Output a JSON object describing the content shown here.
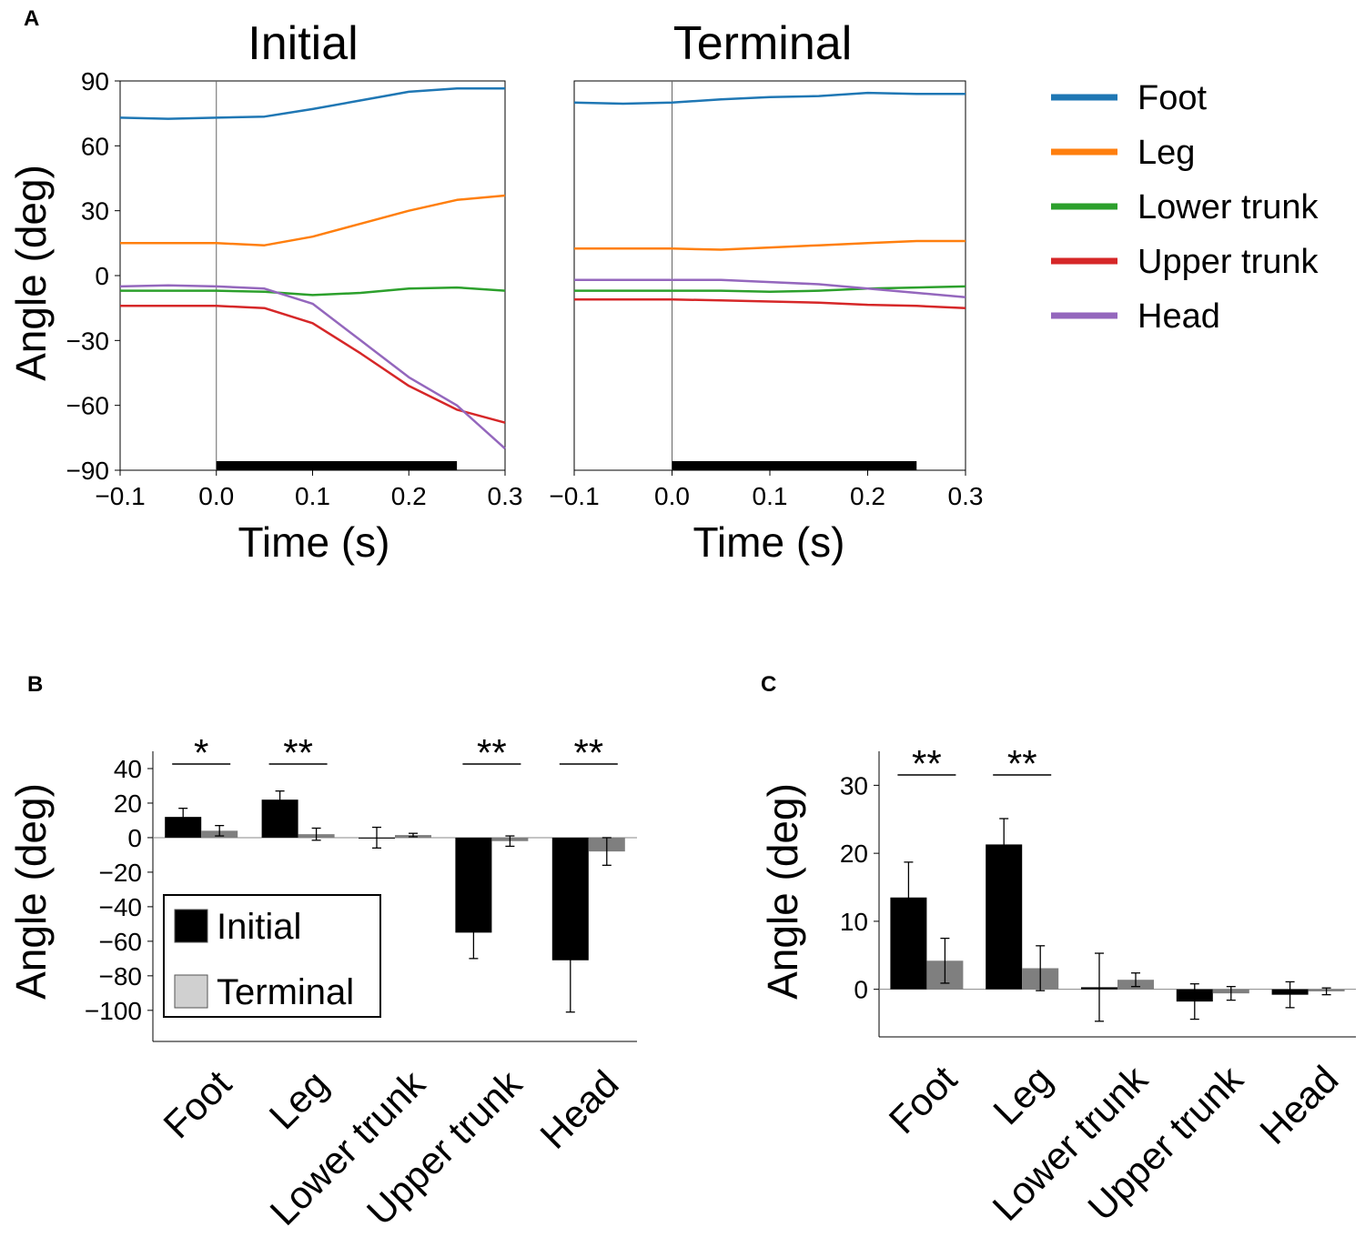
{
  "figure": {
    "panel_labels": [
      "A",
      "B",
      "C"
    ]
  },
  "chart_data": [
    {
      "panel": "A",
      "type": "line",
      "title": "Initial",
      "xlabel": "Time (s)",
      "ylabel": "Angle (deg)",
      "xlim": [
        -0.1,
        0.3
      ],
      "ylim": [
        -90,
        90
      ],
      "xticks": [
        -0.1,
        0.0,
        0.1,
        0.2,
        0.3
      ],
      "xtick_labels": [
        "−0.1",
        "0.0",
        "0.1",
        "0.2",
        "0.3"
      ],
      "yticks": [
        90,
        60,
        30,
        0,
        -30,
        -60,
        -90
      ],
      "ytick_labels": [
        "90",
        "60",
        "30",
        "0",
        "−30",
        "−60",
        "−90"
      ],
      "vline_x": 0.0,
      "bar_interval": [
        0.0,
        0.25
      ],
      "series": [
        {
          "name": "Foot",
          "color": "#1f77b4",
          "x": [
            -0.1,
            -0.05,
            0.0,
            0.05,
            0.1,
            0.15,
            0.2,
            0.25,
            0.3
          ],
          "y": [
            73,
            72.5,
            73,
            73.5,
            77,
            81,
            85,
            86.5,
            86.5
          ]
        },
        {
          "name": "Leg",
          "color": "#ff7f0e",
          "x": [
            -0.1,
            -0.05,
            0.0,
            0.05,
            0.1,
            0.15,
            0.2,
            0.25,
            0.3
          ],
          "y": [
            15,
            15,
            15,
            14,
            18,
            24,
            30,
            35,
            37
          ]
        },
        {
          "name": "Lower trunk",
          "color": "#2ca02c",
          "x": [
            -0.1,
            -0.05,
            0.0,
            0.05,
            0.1,
            0.15,
            0.2,
            0.25,
            0.3
          ],
          "y": [
            -7,
            -7,
            -7,
            -7.5,
            -9,
            -8,
            -6,
            -5.5,
            -7
          ]
        },
        {
          "name": "Upper trunk",
          "color": "#d62728",
          "x": [
            -0.1,
            -0.05,
            0.0,
            0.05,
            0.1,
            0.15,
            0.2,
            0.25,
            0.3
          ],
          "y": [
            -14,
            -14,
            -14,
            -15,
            -22,
            -36,
            -51,
            -62,
            -68
          ]
        },
        {
          "name": "Head",
          "color": "#9467bd",
          "x": [
            -0.1,
            -0.05,
            0.0,
            0.05,
            0.1,
            0.15,
            0.2,
            0.25,
            0.3
          ],
          "y": [
            -5,
            -4.5,
            -5,
            -6,
            -13,
            -30,
            -47,
            -60,
            -80
          ]
        }
      ]
    },
    {
      "panel": "A",
      "type": "line",
      "title": "Terminal",
      "xlabel": "Time (s)",
      "ylabel": "",
      "xlim": [
        -0.1,
        0.3
      ],
      "ylim": [
        -90,
        90
      ],
      "xticks": [
        -0.1,
        0.0,
        0.1,
        0.2,
        0.3
      ],
      "xtick_labels": [
        "−0.1",
        "0.0",
        "0.1",
        "0.2",
        "0.3"
      ],
      "yticks": [],
      "ytick_labels": [],
      "vline_x": 0.0,
      "bar_interval": [
        0.0,
        0.25
      ],
      "series": [
        {
          "name": "Foot",
          "color": "#1f77b4",
          "x": [
            -0.1,
            -0.05,
            0.0,
            0.05,
            0.1,
            0.15,
            0.2,
            0.25,
            0.3
          ],
          "y": [
            80,
            79.5,
            80,
            81.5,
            82.5,
            83,
            84.5,
            84,
            84
          ]
        },
        {
          "name": "Leg",
          "color": "#ff7f0e",
          "x": [
            -0.1,
            -0.05,
            0.0,
            0.05,
            0.1,
            0.15,
            0.2,
            0.25,
            0.3
          ],
          "y": [
            12.5,
            12.5,
            12.5,
            12,
            13,
            14,
            15,
            16,
            16
          ]
        },
        {
          "name": "Lower trunk",
          "color": "#2ca02c",
          "x": [
            -0.1,
            -0.05,
            0.0,
            0.05,
            0.1,
            0.15,
            0.2,
            0.25,
            0.3
          ],
          "y": [
            -7,
            -7,
            -7,
            -7,
            -7.5,
            -7,
            -6,
            -5.5,
            -5
          ]
        },
        {
          "name": "Upper trunk",
          "color": "#d62728",
          "x": [
            -0.1,
            -0.05,
            0.0,
            0.05,
            0.1,
            0.15,
            0.2,
            0.25,
            0.3
          ],
          "y": [
            -11,
            -11,
            -11,
            -11.5,
            -12,
            -12.5,
            -13.5,
            -14,
            -15
          ]
        },
        {
          "name": "Head",
          "color": "#9467bd",
          "x": [
            -0.1,
            -0.05,
            0.0,
            0.05,
            0.1,
            0.15,
            0.2,
            0.25,
            0.3
          ],
          "y": [
            -2,
            -2,
            -2,
            -2,
            -3,
            -4,
            -6,
            -8,
            -10
          ]
        }
      ]
    },
    {
      "panel": "B",
      "type": "bar",
      "ylabel": "Angle (deg)",
      "categories": [
        "Foot",
        "Leg",
        "Lower trunk",
        "Upper trunk",
        "Head"
      ],
      "ylim": [
        -118,
        50
      ],
      "yticks": [
        40,
        20,
        0,
        -20,
        -40,
        -60,
        -80,
        -100
      ],
      "ytick_labels": [
        "40",
        "20",
        "0",
        "−20",
        "−40",
        "−60",
        "−80",
        "−100"
      ],
      "legend": [
        "Initial",
        "Terminal"
      ],
      "series": [
        {
          "name": "Initial",
          "color": "#000000",
          "values": [
            12,
            22,
            0,
            -55,
            -71
          ],
          "errors": [
            5,
            5,
            6,
            15,
            30
          ]
        },
        {
          "name": "Terminal",
          "color": "#7f7f7f",
          "values": [
            4,
            2,
            1.5,
            -2,
            -8
          ],
          "errors": [
            3,
            3.5,
            1,
            3,
            8
          ]
        }
      ],
      "significance": [
        "*",
        "**",
        "",
        "**",
        "**"
      ]
    },
    {
      "panel": "C",
      "type": "bar",
      "ylabel": "Angle (deg)",
      "categories": [
        "Foot",
        "Leg",
        "Lower trunk",
        "Upper trunk",
        "Head"
      ],
      "ylim": [
        -7,
        35
      ],
      "yticks": [
        30,
        20,
        10,
        0
      ],
      "ytick_labels": [
        "30",
        "20",
        "10",
        "0"
      ],
      "series": [
        {
          "name": "Initial",
          "color": "#000000",
          "values": [
            13.5,
            21.3,
            0.3,
            -1.8,
            -0.8
          ],
          "errors": [
            5.2,
            3.8,
            5,
            2.6,
            1.9
          ]
        },
        {
          "name": "Terminal",
          "color": "#7f7f7f",
          "values": [
            4.2,
            3.1,
            1.4,
            -0.6,
            -0.3
          ],
          "errors": [
            3.3,
            3.3,
            1,
            1,
            0.5
          ]
        }
      ],
      "significance": [
        "**",
        "**",
        "",
        "",
        ""
      ]
    }
  ]
}
